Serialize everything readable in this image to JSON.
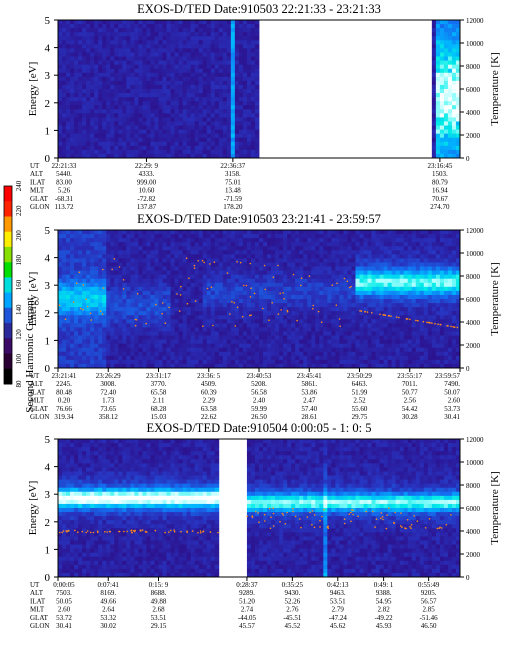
{
  "figure": {
    "colorbar": {
      "label": "Second Harmonic Current",
      "ticks": [
        "80",
        "100",
        "120",
        "140",
        "160",
        "180",
        "200",
        "220",
        "240"
      ],
      "colors": [
        "#000000",
        "#2a0033",
        "#3a0a66",
        "#2a2a9a",
        "#1f55d8",
        "#00a5ff",
        "#00dddd",
        "#00e000",
        "#88e000",
        "#ffee00",
        "#ff9900",
        "#ff2200",
        "#ff0000"
      ]
    }
  },
  "chart_data": [
    {
      "type": "heatmap",
      "title": "EXOS-D/TED   Date:910503  22:21:33 - 23:21:33",
      "ylabel": "Energy [eV]",
      "ylabel_right": "Temperature [K]",
      "ylim": [
        0,
        5
      ],
      "ylim_right": [
        0,
        12000
      ],
      "yticks": [
        "0",
        "1",
        "2",
        "3",
        "4",
        "5"
      ],
      "yticks_right": [
        "0",
        "2000",
        "4000",
        "6000",
        "8000",
        "10000",
        "12000"
      ],
      "x_ticks": [
        "22:21:33",
        "22:29: 9",
        "22:36:37",
        "23:16:45"
      ],
      "x_tick_pos": [
        0,
        0.22,
        0.435,
        0.95
      ],
      "data_segments": [
        [
          0,
          0.5
        ],
        [
          0.935,
          1.0
        ]
      ],
      "row_labels": [
        "UT",
        "ALT",
        "ILAT",
        "MLT",
        "GLAT",
        "GLON"
      ],
      "rows": [
        [
          "22:21:33",
          "22:29: 9",
          "22:36:37",
          "23:16:45"
        ],
        [
          "5440.",
          "4333.",
          "3158.",
          "1503."
        ],
        [
          "83.00",
          "999.00",
          "75.01",
          "80.79"
        ],
        [
          "5.26",
          "10.60",
          "13.48",
          "16.94"
        ],
        [
          "-68.31",
          "-72.82",
          "-71.59",
          "70.67"
        ],
        [
          "113.72",
          "137.87",
          "178.20",
          "274.70"
        ]
      ]
    },
    {
      "type": "heatmap",
      "title": "EXOS-D/TED   Date:910503  23:21:41 - 23:59:57",
      "ylabel": "Energy [eV]",
      "ylabel_right": "Temperature [K]",
      "ylim": [
        0,
        5
      ],
      "ylim_right": [
        0,
        12000
      ],
      "yticks": [
        "0",
        "1",
        "2",
        "3",
        "4",
        "5"
      ],
      "yticks_right": [
        "0",
        "2000",
        "4000",
        "6000",
        "8000",
        "10000",
        "12000"
      ],
      "x_ticks": [
        "23:21:41",
        "23:26:29",
        "23:31:17",
        "23:36: 5",
        "23:40:53",
        "23:45:41",
        "23:50:29",
        "23:55:17",
        "23:59:57"
      ],
      "x_tick_pos": [
        0,
        0.125,
        0.25,
        0.375,
        0.5,
        0.625,
        0.75,
        0.875,
        1.0
      ],
      "data_segments": [
        [
          0,
          1.0
        ]
      ],
      "row_labels": [
        "UT",
        "ALT",
        "ILAT",
        "MLT",
        "GLAT",
        "GLON"
      ],
      "rows": [
        [
          "23:21:41",
          "23:26:29",
          "23:31:17",
          "23:36: 5",
          "23:40:53",
          "23:45:41",
          "23:50:29",
          "23:55:17",
          "23:59:57"
        ],
        [
          "2245.",
          "3008.",
          "3770.",
          "4509.",
          "5208.",
          "5861.",
          "6463.",
          "7011.",
          "7490."
        ],
        [
          "80.48",
          "72.40",
          "65.58",
          "60.39",
          "56.58",
          "53.86",
          "51.99",
          "50.77",
          "50.07"
        ],
        [
          "0.20",
          "1.73",
          "2.11",
          "2.29",
          "2.40",
          "2.47",
          "2.52",
          "2.56",
          "2.60"
        ],
        [
          "76.66",
          "73.65",
          "68.28",
          "63.58",
          "59.99",
          "57.40",
          "55.60",
          "54.42",
          "53.73"
        ],
        [
          "319.34",
          "358.12",
          "15.03",
          "22.62",
          "26.50",
          "28.61",
          "29.75",
          "30.28",
          "30.41"
        ]
      ]
    },
    {
      "type": "heatmap",
      "title": "EXOS-D/TED   Date:910504  0:00:05 - 1: 0: 5",
      "ylabel": "Energy [eV]",
      "ylabel_right": "Temperature [K]",
      "ylim": [
        0,
        5
      ],
      "ylim_right": [
        0,
        12000
      ],
      "yticks": [
        "0",
        "1",
        "2",
        "3",
        "4",
        "5"
      ],
      "yticks_right": [
        "0",
        "2000",
        "4000",
        "6000",
        "8000",
        "10000",
        "12000"
      ],
      "x_ticks": [
        "0:00:05",
        "0:07:41",
        "0:15: 9",
        "0:28:37",
        "0:35:25",
        "0:42:13",
        "0:49: 1",
        "0:55:49"
      ],
      "x_tick_pos": [
        0,
        0.125,
        0.25,
        0.47,
        0.583,
        0.696,
        0.81,
        0.922
      ],
      "data_segments": [
        [
          0,
          0.4
        ],
        [
          0.47,
          1.0
        ]
      ],
      "row_labels": [
        "UT",
        "ALT",
        "ILAT",
        "MLT",
        "GLAT",
        "GLON"
      ],
      "rows": [
        [
          "0:00:05",
          "0:07:41",
          "0:15: 9",
          "0:28:37",
          "0:35:25",
          "0:42:13",
          "0:49: 1",
          "0:55:49"
        ],
        [
          "7503.",
          "8169.",
          "8688.",
          "9289.",
          "9430.",
          "9463.",
          "9388.",
          "9205."
        ],
        [
          "50.05",
          "49.66",
          "49.88",
          "51.20",
          "52.26",
          "53.51",
          "54.95",
          "56.57"
        ],
        [
          "2.60",
          "2.64",
          "2.68",
          "2.74",
          "2.76",
          "2.79",
          "2.82",
          "2.85"
        ],
        [
          "53.72",
          "53.32",
          "53.51",
          "-44.05",
          "-45.51",
          "-47.24",
          "-49.22",
          "-51.46"
        ],
        [
          "30.41",
          "30.02",
          "29.15",
          "45.57",
          "45.52",
          "45.62",
          "45.93",
          "46.50"
        ]
      ]
    }
  ]
}
